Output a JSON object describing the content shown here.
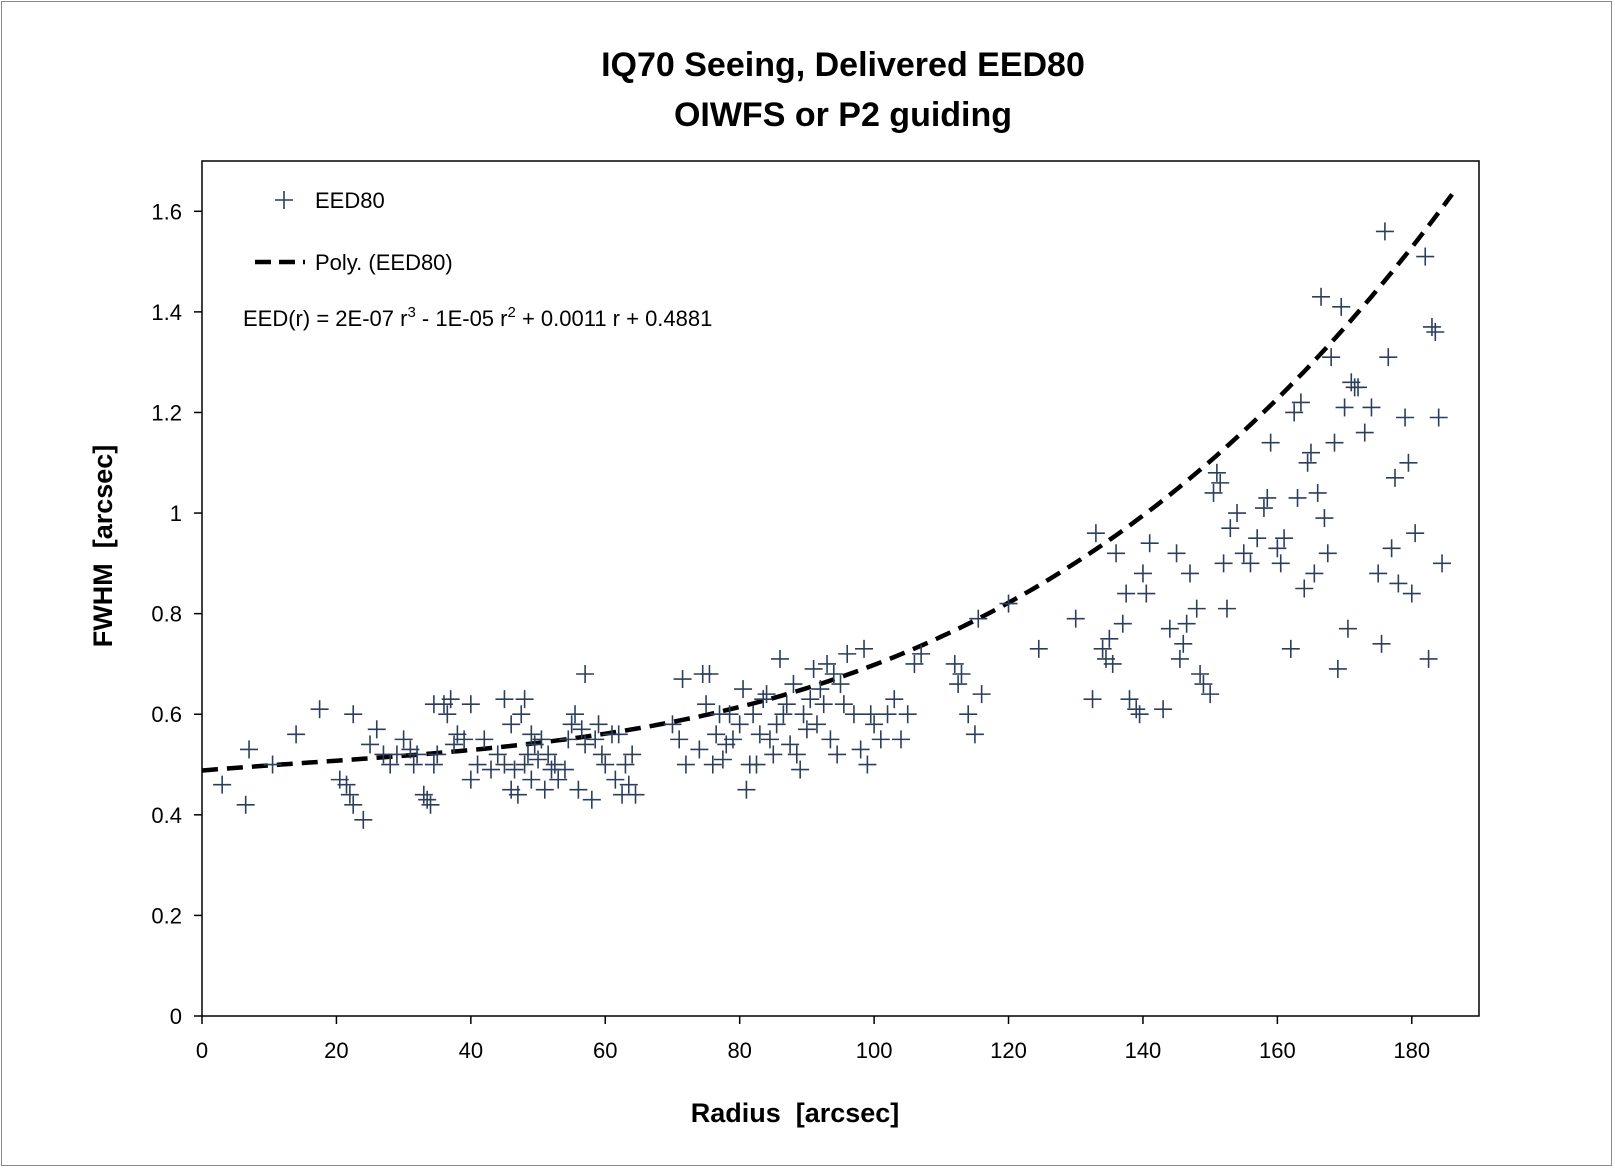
{
  "chart_data": {
    "type": "scatter",
    "title": "IQ70 Seeing, Delivered EED80",
    "subtitle": "OIWFS or P2 guiding",
    "xlabel": "Radius  [arcsec]",
    "ylabel": "FWHM  [arcsec]",
    "xlim": [
      0,
      190
    ],
    "ylim": [
      0,
      1.7
    ],
    "x_ticks": [
      0,
      20,
      40,
      60,
      80,
      100,
      120,
      140,
      160,
      180
    ],
    "y_ticks": [
      0,
      0.2,
      0.4,
      0.6,
      0.8,
      1,
      1.2,
      1.4,
      1.6
    ],
    "x_tick_labels": [
      "0",
      "20",
      "40",
      "60",
      "80",
      "100",
      "120",
      "140",
      "160",
      "180"
    ],
    "y_tick_labels": [
      "0",
      "0.2",
      "0.4",
      "0.6",
      "0.8",
      "1",
      "1.2",
      "1.4",
      "1.6"
    ],
    "grid": false,
    "legend_position": "top-left",
    "series": [
      {
        "name": "EED80",
        "marker": "plus",
        "color": "#2c3e5c",
        "points": [
          [
            3,
            0.46
          ],
          [
            6.5,
            0.42
          ],
          [
            7,
            0.53
          ],
          [
            10.5,
            0.5
          ],
          [
            14,
            0.56
          ],
          [
            17.5,
            0.61
          ],
          [
            20.5,
            0.47
          ],
          [
            21.5,
            0.46
          ],
          [
            22,
            0.44
          ],
          [
            22.5,
            0.42
          ],
          [
            22.5,
            0.6
          ],
          [
            24,
            0.39
          ],
          [
            25,
            0.54
          ],
          [
            26,
            0.57
          ],
          [
            27,
            0.52
          ],
          [
            28,
            0.5
          ],
          [
            29,
            0.52
          ],
          [
            30,
            0.55
          ],
          [
            31,
            0.53
          ],
          [
            31.5,
            0.5
          ],
          [
            32,
            0.52
          ],
          [
            33,
            0.44
          ],
          [
            33.5,
            0.43
          ],
          [
            34,
            0.42
          ],
          [
            34.5,
            0.5
          ],
          [
            34.5,
            0.62
          ],
          [
            35,
            0.52
          ],
          [
            36,
            0.62
          ],
          [
            36.5,
            0.6
          ],
          [
            37,
            0.63
          ],
          [
            37.5,
            0.54
          ],
          [
            38,
            0.56
          ],
          [
            39,
            0.55
          ],
          [
            40,
            0.62
          ],
          [
            40,
            0.47
          ],
          [
            41,
            0.5
          ],
          [
            42,
            0.55
          ],
          [
            43,
            0.49
          ],
          [
            44,
            0.52
          ],
          [
            45,
            0.5
          ],
          [
            45,
            0.63
          ],
          [
            46,
            0.58
          ],
          [
            46,
            0.45
          ],
          [
            46.5,
            0.49
          ],
          [
            47,
            0.44
          ],
          [
            47.5,
            0.6
          ],
          [
            48,
            0.63
          ],
          [
            48,
            0.5
          ],
          [
            48.5,
            0.52
          ],
          [
            49,
            0.56
          ],
          [
            49,
            0.47
          ],
          [
            49.5,
            0.54
          ],
          [
            50,
            0.51
          ],
          [
            50.5,
            0.55
          ],
          [
            51,
            0.45
          ],
          [
            51.5,
            0.52
          ],
          [
            52,
            0.49
          ],
          [
            52.5,
            0.5
          ],
          [
            53,
            0.47
          ],
          [
            54,
            0.49
          ],
          [
            54.5,
            0.55
          ],
          [
            55,
            0.58
          ],
          [
            55.5,
            0.6
          ],
          [
            56,
            0.45
          ],
          [
            56.5,
            0.57
          ],
          [
            57,
            0.68
          ],
          [
            57,
            0.54
          ],
          [
            58,
            0.43
          ],
          [
            58.5,
            0.55
          ],
          [
            59,
            0.58
          ],
          [
            59.5,
            0.52
          ],
          [
            60,
            0.5
          ],
          [
            61,
            0.56
          ],
          [
            61.5,
            0.47
          ],
          [
            62,
            0.56
          ],
          [
            62.5,
            0.44
          ],
          [
            63,
            0.5
          ],
          [
            63.5,
            0.46
          ],
          [
            64,
            0.52
          ],
          [
            64.5,
            0.44
          ],
          [
            70,
            0.58
          ],
          [
            71,
            0.55
          ],
          [
            71.5,
            0.67
          ],
          [
            72,
            0.5
          ],
          [
            74,
            0.53
          ],
          [
            74.5,
            0.68
          ],
          [
            75,
            0.62
          ],
          [
            75.5,
            0.68
          ],
          [
            76,
            0.5
          ],
          [
            76.5,
            0.56
          ],
          [
            77,
            0.6
          ],
          [
            77.5,
            0.51
          ],
          [
            78,
            0.54
          ],
          [
            78.5,
            0.6
          ],
          [
            79,
            0.55
          ],
          [
            80,
            0.58
          ],
          [
            80.5,
            0.65
          ],
          [
            81,
            0.45
          ],
          [
            81.5,
            0.5
          ],
          [
            82,
            0.6
          ],
          [
            82.5,
            0.5
          ],
          [
            83,
            0.56
          ],
          [
            83.5,
            0.63
          ],
          [
            84,
            0.64
          ],
          [
            84.5,
            0.55
          ],
          [
            85,
            0.52
          ],
          [
            85.5,
            0.58
          ],
          [
            86,
            0.71
          ],
          [
            86.5,
            0.6
          ],
          [
            87,
            0.62
          ],
          [
            87.5,
            0.54
          ],
          [
            88,
            0.66
          ],
          [
            88.5,
            0.52
          ],
          [
            89,
            0.49
          ],
          [
            89.5,
            0.6
          ],
          [
            90,
            0.57
          ],
          [
            90.5,
            0.63
          ],
          [
            91,
            0.69
          ],
          [
            91.5,
            0.58
          ],
          [
            92,
            0.65
          ],
          [
            92.5,
            0.62
          ],
          [
            93,
            0.7
          ],
          [
            93.5,
            0.55
          ],
          [
            94,
            0.68
          ],
          [
            94.5,
            0.52
          ],
          [
            95,
            0.66
          ],
          [
            95.5,
            0.62
          ],
          [
            96,
            0.72
          ],
          [
            97,
            0.6
          ],
          [
            98,
            0.53
          ],
          [
            98.5,
            0.73
          ],
          [
            99,
            0.5
          ],
          [
            99.5,
            0.6
          ],
          [
            100,
            0.58
          ],
          [
            101,
            0.55
          ],
          [
            102,
            0.6
          ],
          [
            103,
            0.63
          ],
          [
            104,
            0.55
          ],
          [
            105,
            0.6
          ],
          [
            106,
            0.7
          ],
          [
            107,
            0.72
          ],
          [
            112,
            0.7
          ],
          [
            112.5,
            0.66
          ],
          [
            113,
            0.68
          ],
          [
            114,
            0.6
          ],
          [
            115,
            0.56
          ],
          [
            115.5,
            0.79
          ],
          [
            116,
            0.64
          ],
          [
            120,
            0.82
          ],
          [
            124.5,
            0.73
          ],
          [
            130,
            0.79
          ],
          [
            132.5,
            0.63
          ],
          [
            133,
            0.96
          ],
          [
            134,
            0.73
          ],
          [
            134.5,
            0.71
          ],
          [
            135,
            0.75
          ],
          [
            135.5,
            0.7
          ],
          [
            136,
            0.92
          ],
          [
            137,
            0.78
          ],
          [
            137.5,
            0.84
          ],
          [
            138,
            0.63
          ],
          [
            139,
            0.61
          ],
          [
            139.5,
            0.6
          ],
          [
            140,
            0.88
          ],
          [
            140.5,
            0.84
          ],
          [
            141,
            0.94
          ],
          [
            143,
            0.61
          ],
          [
            144,
            0.77
          ],
          [
            145,
            0.92
          ],
          [
            145.5,
            0.71
          ],
          [
            146,
            0.74
          ],
          [
            146.5,
            0.78
          ],
          [
            147,
            0.88
          ],
          [
            148,
            0.81
          ],
          [
            148.5,
            0.68
          ],
          [
            149,
            0.66
          ],
          [
            150,
            0.64
          ],
          [
            150.5,
            1.04
          ],
          [
            151,
            1.08
          ],
          [
            151.5,
            1.06
          ],
          [
            152,
            0.9
          ],
          [
            152.5,
            0.81
          ],
          [
            153,
            0.97
          ],
          [
            154,
            1
          ],
          [
            155,
            0.92
          ],
          [
            156,
            0.9
          ],
          [
            157,
            0.95
          ],
          [
            158,
            1.01
          ],
          [
            158.5,
            1.03
          ],
          [
            159,
            1.14
          ],
          [
            160,
            0.93
          ],
          [
            160.5,
            0.9
          ],
          [
            161,
            0.95
          ],
          [
            162,
            0.73
          ],
          [
            162.5,
            1.2
          ],
          [
            163,
            1.03
          ],
          [
            163.5,
            1.22
          ],
          [
            164,
            0.85
          ],
          [
            164.5,
            1.1
          ],
          [
            165,
            1.12
          ],
          [
            165.5,
            0.88
          ],
          [
            166,
            1.04
          ],
          [
            166.5,
            1.43
          ],
          [
            167,
            0.99
          ],
          [
            167.5,
            0.92
          ],
          [
            168,
            1.31
          ],
          [
            168.5,
            1.14
          ],
          [
            169,
            0.69
          ],
          [
            169.5,
            1.41
          ],
          [
            170,
            1.21
          ],
          [
            170.5,
            0.77
          ],
          [
            171,
            1.26
          ],
          [
            171.5,
            1.25
          ],
          [
            172,
            1.25
          ],
          [
            173,
            1.16
          ],
          [
            174,
            1.21
          ],
          [
            175,
            0.88
          ],
          [
            175.5,
            0.74
          ],
          [
            176,
            1.56
          ],
          [
            176.5,
            1.31
          ],
          [
            177,
            0.93
          ],
          [
            177.5,
            1.07
          ],
          [
            178,
            0.86
          ],
          [
            179,
            1.19
          ],
          [
            179.5,
            1.1
          ],
          [
            180,
            0.84
          ],
          [
            180.5,
            0.96
          ],
          [
            182,
            1.51
          ],
          [
            182.5,
            0.71
          ],
          [
            183,
            1.37
          ],
          [
            183.5,
            1.36
          ],
          [
            184,
            1.19
          ],
          [
            184.5,
            0.9
          ]
        ]
      },
      {
        "name": "Poly. (EED80)",
        "line_style": "dashed",
        "color": "#000000",
        "x_range": [
          0,
          186
        ],
        "coefficients": {
          "r3": 2e-07,
          "r2": -1e-05,
          "r1": 0.0011,
          "r0": 0.4881
        }
      }
    ],
    "annotations": [
      {
        "text": "EED(r) = 2E-07 r³ - 1E-05 r² + 0.0011 r + 0.4881",
        "position": "top-left"
      }
    ]
  },
  "legend": {
    "markers_label": "EED80",
    "trend_label": "Poly. (EED80)"
  }
}
